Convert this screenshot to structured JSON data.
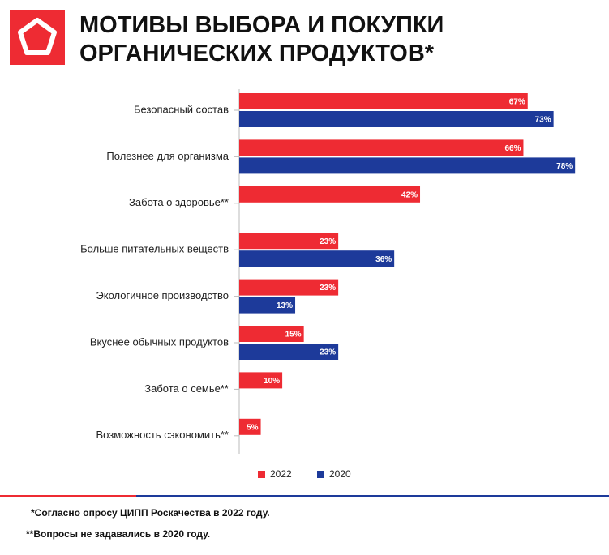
{
  "chart_data": {
    "type": "bar",
    "orientation": "horizontal",
    "title": [
      "МОТИВЫ ВЫБОРА И ПОКУПКИ",
      "ОРГАНИЧЕСКИХ ПРОДУКТОВ*"
    ],
    "categories": [
      "Безопасный состав",
      "Полезнее для организма",
      "Забота о здоровье**",
      "Больше питательных веществ",
      "Экологичное производство",
      "Вкуснее обычных продуктов",
      "Забота о семье**",
      "Возможность сэкономить**"
    ],
    "series": [
      {
        "name": "2022",
        "color": "#ee2b33",
        "values": [
          67,
          66,
          42,
          23,
          23,
          15,
          10,
          5
        ],
        "value_labels": [
          "67%",
          "66%",
          "42%",
          "23%",
          "23%",
          "15%",
          "10%",
          "5%"
        ]
      },
      {
        "name": "2020",
        "color": "#1d3a9a",
        "values": [
          73,
          78,
          null,
          36,
          13,
          23,
          null,
          null
        ],
        "value_labels": [
          "73%",
          "78%",
          null,
          "36%",
          "13%",
          "23%",
          null,
          null
        ]
      }
    ],
    "notes": [
      "*Согласно опросу ЦИПП Роскачества в 2022 году.",
      "**Вопросы не задавались в 2020 году."
    ]
  }
}
